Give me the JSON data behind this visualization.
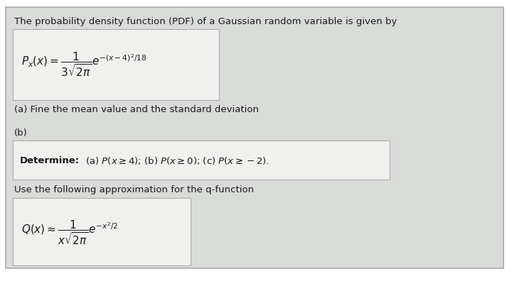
{
  "outer_bg": "#ffffff",
  "card_bg": "#d8dbd8",
  "inner_box_bg": "#f0f0ee",
  "card_edge": "#aaaaaa",
  "inner_edge": "#aaaaaa",
  "title_text": "The probability density function (PDF) of a Gaussian random variable is given by",
  "formula1": "$P_x(x) = \\dfrac{1}{3\\sqrt{2\\pi}}e^{-(x-4)^2/18}$",
  "part_a": "(a) Fine the mean value and the standard deviation",
  "part_b": "(b)",
  "determine_bold": "Determine:",
  "determine_rest": " (a) $P(x \\geq 4)$; (b) $P(x \\geq 0)$; (c) $P(x \\geq -2)$.",
  "use_text": "Use the following approximation for the q-function",
  "formula2": "$Q(x) \\approx \\dfrac{1}{x\\sqrt{2\\pi}}e^{-x^2/2}$",
  "text_color": "#1a1a1a",
  "fig_width": 7.2,
  "fig_height": 3.96,
  "dpi": 100
}
